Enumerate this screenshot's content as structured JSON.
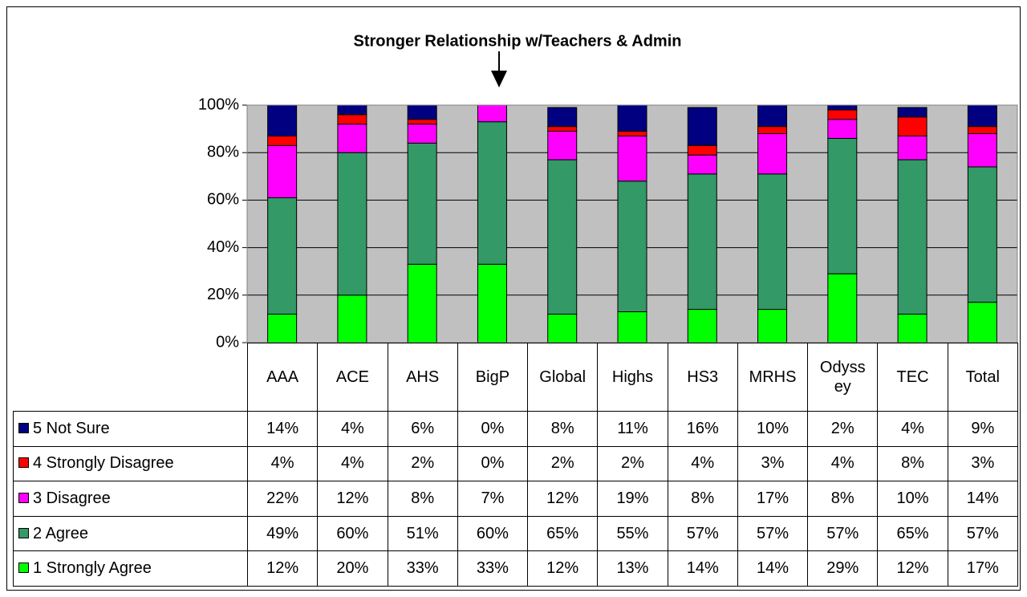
{
  "chart_data": {
    "type": "stacked_bar",
    "title": "Stronger Relationship w/Teachers & Admin",
    "categories": [
      "AAA",
      "ACE",
      "AHS",
      "BigP",
      "Global",
      "Highs",
      "HS3",
      "MRHS",
      "Odyssey",
      "TEC",
      "Total"
    ],
    "series": [
      {
        "name": "1 Strongly Agree",
        "color": "#00ff00",
        "values": [
          12,
          20,
          33,
          33,
          12,
          13,
          14,
          14,
          29,
          12,
          17
        ],
        "value_labels": [
          "12%",
          "20%",
          "33%",
          "33%",
          "12%",
          "13%",
          "14%",
          "14%",
          "29%",
          "12%",
          "17%"
        ]
      },
      {
        "name": "2 Agree",
        "color": "#339966",
        "values": [
          49,
          60,
          51,
          60,
          65,
          55,
          57,
          57,
          57,
          65,
          57
        ],
        "value_labels": [
          "49%",
          "60%",
          "51%",
          "60%",
          "65%",
          "55%",
          "57%",
          "57%",
          "57%",
          "65%",
          "57%"
        ]
      },
      {
        "name": "3 Disagree",
        "color": "#ff00ff",
        "values": [
          22,
          12,
          8,
          7,
          12,
          19,
          8,
          17,
          8,
          10,
          14
        ],
        "value_labels": [
          "22%",
          "12%",
          "8%",
          "7%",
          "12%",
          "19%",
          "8%",
          "17%",
          "8%",
          "10%",
          "14%"
        ]
      },
      {
        "name": "4 Strongly Disagree",
        "color": "#ff0000",
        "values": [
          4,
          4,
          2,
          0,
          2,
          2,
          4,
          3,
          4,
          8,
          3
        ],
        "value_labels": [
          "4%",
          "4%",
          "2%",
          "0%",
          "2%",
          "2%",
          "4%",
          "3%",
          "4%",
          "8%",
          "3%"
        ]
      },
      {
        "name": "5 Not Sure",
        "color": "#000080",
        "values": [
          14,
          4,
          6,
          0,
          8,
          11,
          16,
          10,
          2,
          4,
          9
        ],
        "value_labels": [
          "14%",
          "4%",
          "6%",
          "0%",
          "8%",
          "11%",
          "16%",
          "10%",
          "2%",
          "4%",
          "9%"
        ]
      }
    ],
    "ylim": [
      0,
      100
    ],
    "yticks": [
      {
        "value": 0,
        "label": "0%"
      },
      {
        "value": 20,
        "label": "20%"
      },
      {
        "value": 40,
        "label": "40%"
      },
      {
        "value": 60,
        "label": "60%"
      },
      {
        "value": 80,
        "label": "80%"
      },
      {
        "value": 100,
        "label": "100%"
      }
    ],
    "grid": true,
    "plot_background": "#c0c0c0"
  }
}
